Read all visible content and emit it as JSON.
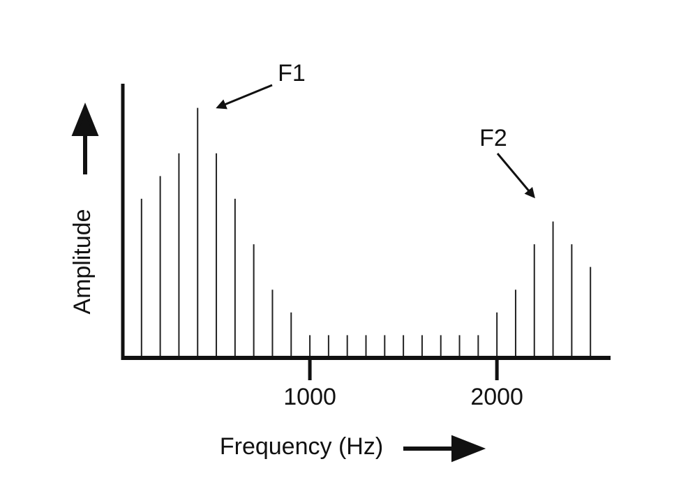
{
  "chart_data": {
    "type": "bar",
    "x": [
      100,
      200,
      300,
      400,
      500,
      600,
      700,
      800,
      900,
      1000,
      1100,
      1200,
      1300,
      1400,
      1500,
      1600,
      1700,
      1800,
      1900,
      2000,
      2100,
      2200,
      2300,
      2400,
      2500
    ],
    "values": [
      7,
      8,
      9,
      11,
      9,
      7,
      5,
      3,
      2,
      1,
      1,
      1,
      1,
      1,
      1,
      1,
      1,
      1,
      1,
      2,
      3,
      5,
      6,
      5,
      4
    ],
    "color": "#222222",
    "xlim": [
      0,
      2600
    ],
    "xticks": [
      1000,
      2000
    ],
    "ylim": [
      0,
      12
    ],
    "x_label": "Frequency (Hz)",
    "y_label": "Amplitude",
    "annotations": [
      "F1",
      "F2"
    ]
  }
}
